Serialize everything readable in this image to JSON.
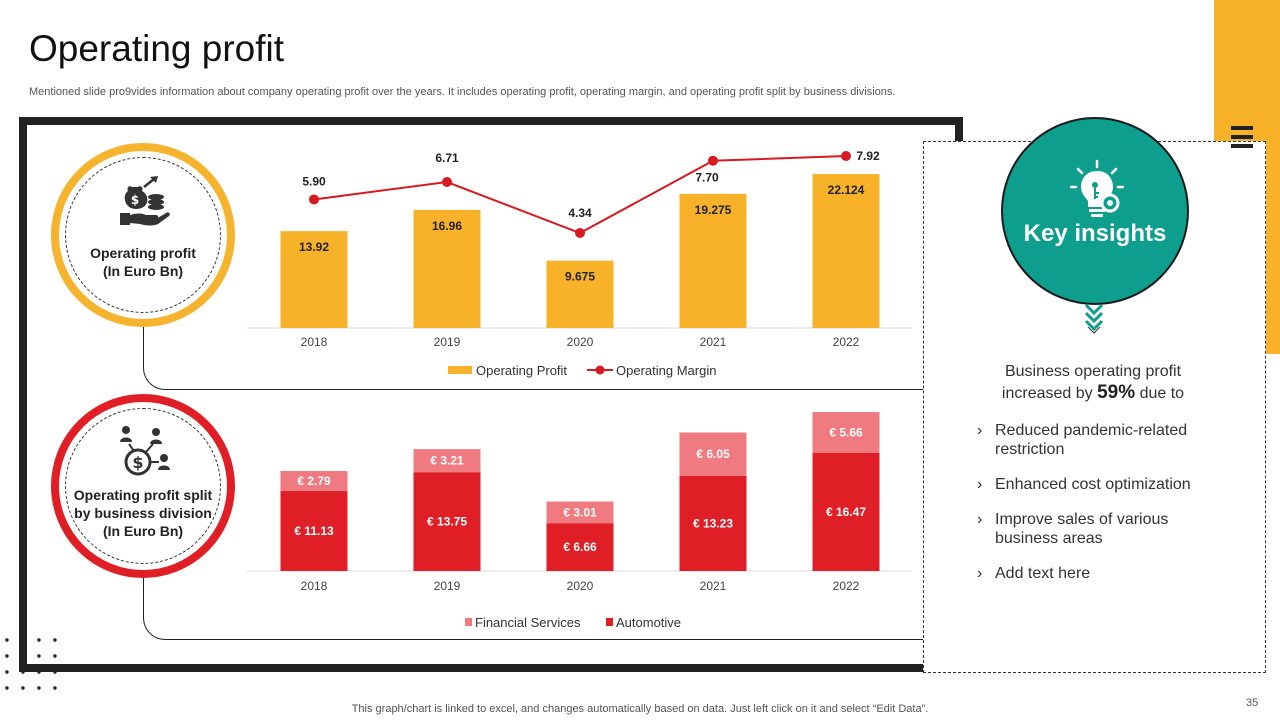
{
  "page": {
    "title": "Operating profit",
    "subtitle": "Mentioned slide pro9vides information about company operating profit over the years. It includes operating profit, operating margin, and operating profit split by business divisions.",
    "footnote": "This graph/chart is linked to excel,  and changes automatically based on data. Just left click on it and select “Edit Data”.",
    "page_number": "35"
  },
  "badges": {
    "top_label_line1": "Operating profit",
    "top_label_line2": "(In Euro Bn)",
    "bottom_label_line1": "Operating profit split",
    "bottom_label_line2": "by business division",
    "bottom_label_line3": "(In Euro Bn)"
  },
  "insights": {
    "title": "Key insights",
    "lead_before": "Business operating profit increased by",
    "lead_pct": "59%",
    "lead_after": "due to",
    "items": [
      "Reduced pandemic-related restriction",
      "Enhanced cost optimization",
      "Improve sales of various business areas",
      "Add text here"
    ]
  },
  "colors": {
    "gold": "#f7b22a",
    "red_line": "#d71920",
    "automotive": "#e01e25",
    "financial": "#ef7b80",
    "teal": "#0e9e8e"
  },
  "chart_data": [
    {
      "type": "bar",
      "title": "Operating profit (In Euro Bn)",
      "categories": [
        "2018",
        "2019",
        "2020",
        "2021",
        "2022"
      ],
      "series": [
        {
          "name": "Operating Profit",
          "kind": "bar",
          "values": [
            13.92,
            16.96,
            9.675,
            19.275,
            22.124
          ],
          "labels": [
            "13.92",
            "16.96",
            "9.675",
            "19.275",
            "22.124"
          ]
        },
        {
          "name": "Operating Margin",
          "kind": "line",
          "values": [
            5.9,
            6.71,
            4.34,
            7.7,
            7.92
          ],
          "labels": [
            "5.90",
            "6.71",
            "4.34",
            "7.70",
            "7.92"
          ]
        }
      ],
      "legend": [
        "Operating Profit",
        "Operating Margin"
      ],
      "legend_position": "bottom"
    },
    {
      "type": "bar",
      "stacked": true,
      "title": "Operating profit split by business division (In Euro Bn)",
      "categories": [
        "2018",
        "2019",
        "2020",
        "2021",
        "2022"
      ],
      "series": [
        {
          "name": "Automotive",
          "values": [
            11.13,
            13.75,
            6.66,
            13.23,
            16.47
          ],
          "labels": [
            "€ 11.13",
            "€ 13.75",
            "€ 6.66",
            "€ 13.23",
            "€ 16.47"
          ]
        },
        {
          "name": "Financial Services",
          "values": [
            2.79,
            3.21,
            3.01,
            6.05,
            5.66
          ],
          "labels": [
            "€ 2.79",
            "€ 3.21",
            "€ 3.01",
            "€ 6.05",
            "€ 5.66"
          ]
        }
      ],
      "legend": [
        "Financial Services",
        "Automotive"
      ],
      "legend_position": "bottom"
    }
  ]
}
